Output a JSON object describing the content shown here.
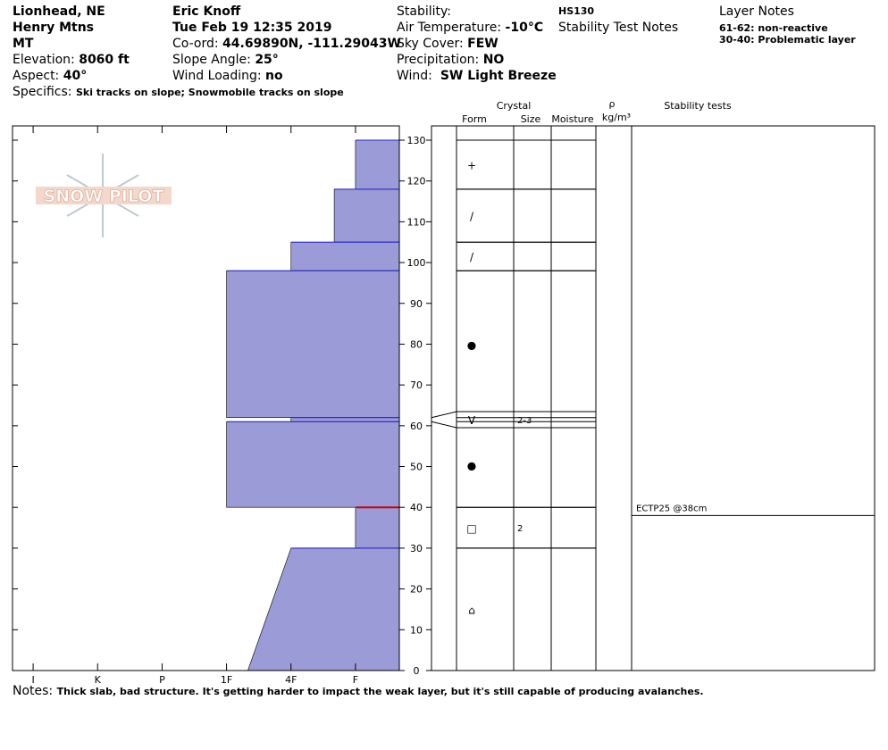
{
  "header": {
    "location": "Lionhead, NE",
    "range": "Henry Mtns",
    "state": "MT",
    "elevation_label": "Elevation: ",
    "elevation": "8060 ft",
    "aspect_label": "Aspect: ",
    "aspect": "40°",
    "specifics_label": "Specifics: ",
    "specifics": "Ski tracks on slope; Snowmobile tracks on slope",
    "observer": "Eric Knoff",
    "date": "Tue Feb 19 12:35 2019",
    "coord_label": "Co-ord: ",
    "coord": "44.69890N, -111.29043W",
    "slope_label": "Slope Angle: ",
    "slope": "25°",
    "wind_loading_label": "Wind Loading: ",
    "wind_loading": "no",
    "stability_label": "Stability:",
    "air_temp_label": "Air Temperature: ",
    "air_temp": "-10°C",
    "sky_label": "Sky Cover: ",
    "sky": "FEW",
    "precip_label": "Precipitation: ",
    "precip": "NO",
    "wind_label": "Wind:  ",
    "wind": "SW Light Breeze",
    "hs": "HS130",
    "stability_notes_title": "Stability Test Notes",
    "layer_notes_title": "Layer Notes",
    "layer_notes": [
      "61-62: non-reactive",
      "30-40: Problematic layer"
    ]
  },
  "columns": {
    "crystal": "Crystal",
    "form": "Form",
    "size": "Size",
    "moisture": "Moisture",
    "rho": "ρ",
    "density_unit": "kg/m³",
    "stability": "Stability tests"
  },
  "logo": "SNOW PILOT",
  "profile": {
    "ylim": [
      0,
      133.5
    ],
    "yticks": [
      0,
      10,
      20,
      30,
      40,
      50,
      60,
      70,
      80,
      90,
      100,
      110,
      120,
      130
    ],
    "xlim": [
      -0.32,
      5.68
    ],
    "xticks": [
      {
        "value": 0,
        "label": "I"
      },
      {
        "value": 1,
        "label": "K"
      },
      {
        "value": 2,
        "label": "P"
      },
      {
        "value": 3,
        "label": "1F"
      },
      {
        "value": 4,
        "label": "4F"
      },
      {
        "value": 5,
        "label": "F"
      }
    ],
    "color": "#9b9bd7",
    "critical_layer": 40,
    "layers": [
      {
        "top": 130,
        "bottom": 118,
        "hardness": [
          5,
          5
        ],
        "form": "+"
      },
      {
        "top": 118,
        "bottom": 105,
        "hardness": [
          4.67,
          4.67
        ],
        "form": "/"
      },
      {
        "top": 105,
        "bottom": 98,
        "hardness": [
          4,
          4
        ],
        "form": "/"
      },
      {
        "top": 98,
        "bottom": 62,
        "hardness": [
          3,
          3
        ],
        "form": "●"
      },
      {
        "top": 62,
        "bottom": 61,
        "hardness": [
          4,
          4
        ],
        "form": "V",
        "size": "2-3"
      },
      {
        "top": 61,
        "bottom": 40,
        "hardness": [
          3,
          3
        ],
        "form": "●"
      },
      {
        "top": 40,
        "bottom": 30,
        "hardness": [
          5,
          5
        ],
        "form": "□",
        "size": "2"
      },
      {
        "top": 30,
        "bottom": 0,
        "hardness": [
          4,
          3.33
        ],
        "form": "⌂"
      }
    ],
    "tests": [
      {
        "depth": 38,
        "label": "ECTP25 @38cm"
      }
    ]
  },
  "notes_label": "Notes: ",
  "notes": "Thick slab, bad structure. It's getting harder to impact the weak layer, but it's still capable of producing avalanches."
}
